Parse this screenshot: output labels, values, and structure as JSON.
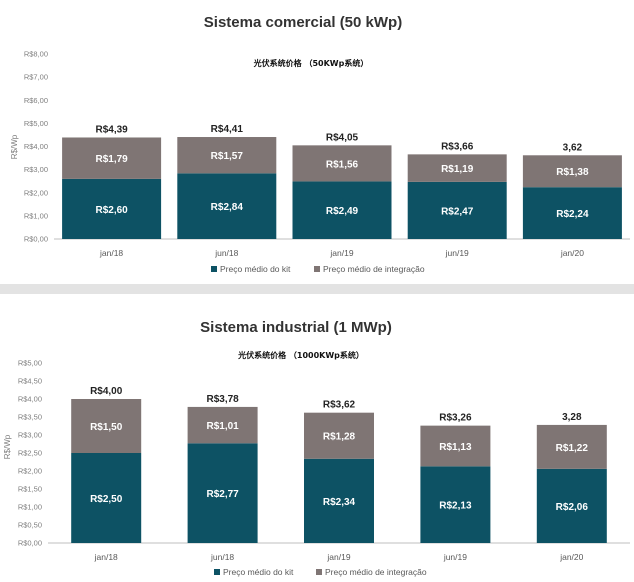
{
  "colors": {
    "kit": "#0d5264",
    "integration": "#7f7574",
    "axis": "#bfbfbf"
  },
  "chart_data": [
    {
      "type": "bar",
      "stacked": true,
      "title": "Sistema comercial (50 kWp)",
      "subtitle": "光伏系统价格 （50KWp系统）",
      "ylabel": "R$/Wp",
      "ylim": [
        0,
        8
      ],
      "yticks": [
        "R$0,00",
        "R$1,00",
        "R$2,00",
        "R$3,00",
        "R$4,00",
        "R$5,00",
        "R$6,00",
        "R$7,00",
        "R$8,00"
      ],
      "categories": [
        "jan/18",
        "jun/18",
        "jan/19",
        "jun/19",
        "jan/20"
      ],
      "series": [
        {
          "name": "Preço médio do kit",
          "values": [
            2.6,
            2.84,
            2.49,
            2.47,
            2.24
          ],
          "labels": [
            "R$2,60",
            "R$2,84",
            "R$2,49",
            "R$2,47",
            "R$2,24"
          ]
        },
        {
          "name": "Preço médio de integração",
          "values": [
            1.79,
            1.57,
            1.56,
            1.19,
            1.38
          ],
          "labels": [
            "R$1,79",
            "R$1,57",
            "R$1,56",
            "R$1,19",
            "R$1,38"
          ]
        }
      ],
      "totals": [
        4.39,
        4.41,
        4.05,
        3.66,
        3.62
      ],
      "total_labels": [
        "R$4,39",
        "R$4,41",
        "R$4,05",
        "R$3,66",
        "3,62"
      ],
      "legend_position": "bottom"
    },
    {
      "type": "bar",
      "stacked": true,
      "title": "Sistema industrial (1 MWp)",
      "subtitle": "光伏系统价格 （1000KWp系统）",
      "ylabel": "R$/Wp",
      "ylim": [
        0,
        5
      ],
      "yticks": [
        "R$0,00",
        "R$0,50",
        "R$1,00",
        "R$1,50",
        "R$2,00",
        "R$2,50",
        "R$3,00",
        "R$3,50",
        "R$4,00",
        "R$4,50",
        "R$5,00"
      ],
      "categories": [
        "jan/18",
        "jun/18",
        "jan/19",
        "jun/19",
        "jan/20"
      ],
      "series": [
        {
          "name": "Preço médio do kit",
          "values": [
            2.5,
            2.77,
            2.34,
            2.13,
            2.06
          ],
          "labels": [
            "R$2,50",
            "R$2,77",
            "R$2,34",
            "R$2,13",
            "R$2,06"
          ]
        },
        {
          "name": "Preço médio de integração",
          "values": [
            1.5,
            1.01,
            1.28,
            1.13,
            1.22
          ],
          "labels": [
            "R$1,50",
            "R$1,01",
            "R$1,28",
            "R$1,13",
            "R$1,22"
          ]
        }
      ],
      "totals": [
        4.0,
        3.78,
        3.62,
        3.26,
        3.28
      ],
      "total_labels": [
        "R$4,00",
        "R$3,78",
        "R$3,62",
        "R$3,26",
        "3,28"
      ],
      "legend_position": "bottom"
    }
  ]
}
